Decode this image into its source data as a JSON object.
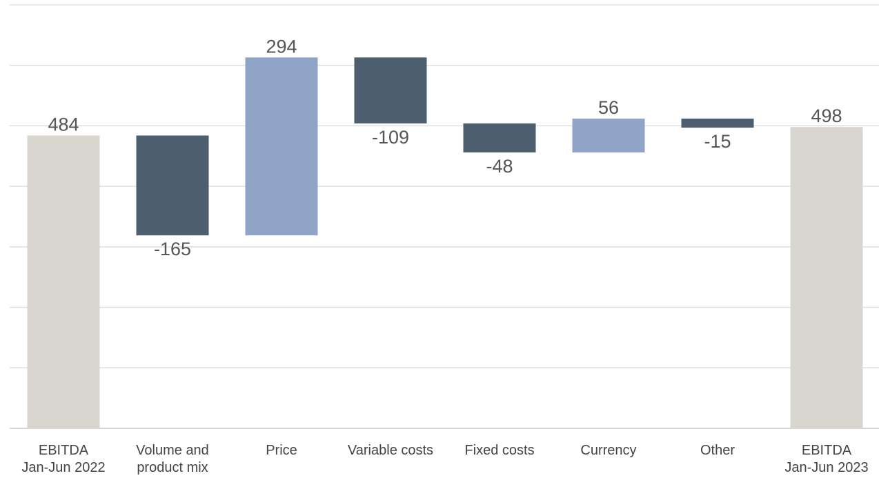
{
  "chart_data": {
    "type": "waterfall",
    "categories": [
      "EBITDA\nJan-Jun 2022",
      "Volume and\nproduct mix",
      "Price",
      "Variable costs",
      "Fixed costs",
      "Currency",
      "Other",
      "EBITDA\nJan-Jun 2023"
    ],
    "values": [
      484,
      -165,
      294,
      -109,
      -48,
      56,
      -15,
      498
    ],
    "bar_kinds": [
      "total",
      "delta",
      "delta",
      "delta",
      "delta",
      "delta",
      "delta",
      "total"
    ],
    "colors": {
      "total": "#d9d5cf",
      "positive": "#8fa4c6",
      "negative": "#4d5f6e"
    },
    "ylim": [
      0,
      700
    ],
    "yticks": [
      0,
      100,
      200,
      300,
      400,
      500,
      600,
      700
    ],
    "y_tick_labels": false,
    "grid": true
  }
}
